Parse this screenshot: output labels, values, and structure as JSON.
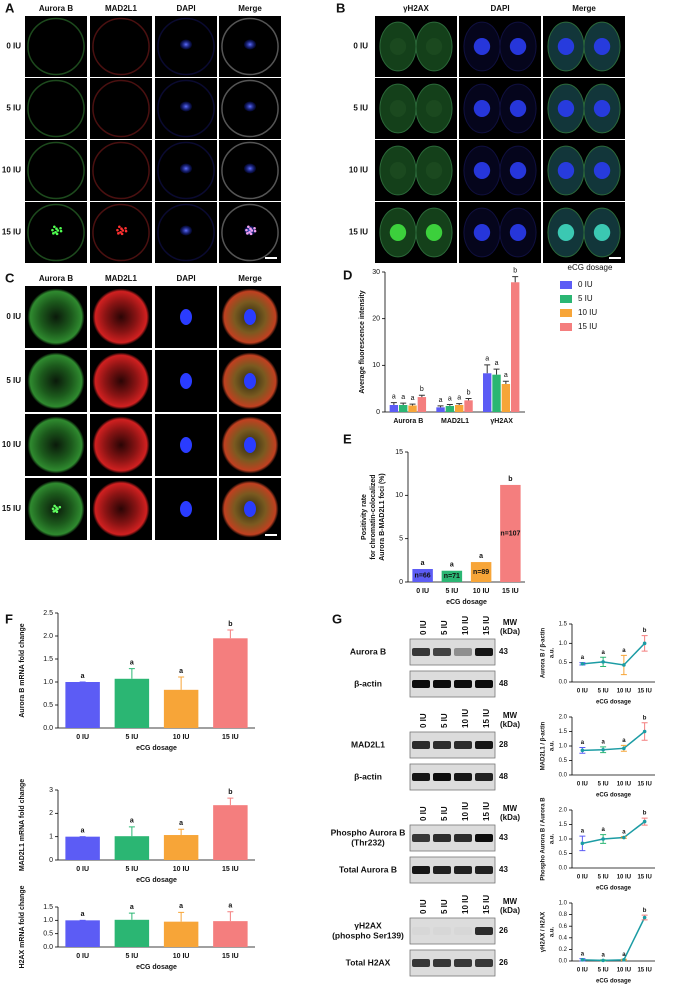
{
  "figure": {
    "panel_labels": [
      "A",
      "B",
      "C",
      "D",
      "E",
      "F",
      "G"
    ],
    "microscopy": [
      {
        "columns": [
          "Aurora B",
          "MAD2L1",
          "DAPI",
          "Merge"
        ],
        "rows": [
          "0 IU",
          "5 IU",
          "10 IU",
          "15 IU"
        ]
      },
      {
        "columns": [
          "γH2AX",
          "DAPI",
          "Merge"
        ],
        "rows": [
          "0 IU",
          "5 IU",
          "10 IU",
          "15 IU"
        ]
      },
      {
        "columns": [
          "Aurora B",
          "MAD2L1",
          "DAPI",
          "Merge"
        ],
        "rows": [
          "0 IU",
          "5 IU",
          "10 IU",
          "15 IU"
        ]
      }
    ],
    "blots": {
      "lanes": [
        "0 IU",
        "5 IU",
        "10 IU",
        "15 IU"
      ],
      "mw_header": [
        "MW",
        "(kDa)"
      ],
      "groups": [
        {
          "blots": [
            {
              "label": [
                "Aurora B"
              ],
              "mw": 43
            },
            {
              "label": [
                "β-actin"
              ],
              "mw": 48
            }
          ]
        },
        {
          "blots": [
            {
              "label": [
                "MAD2L1"
              ],
              "mw": 28
            },
            {
              "label": [
                "β-actin"
              ],
              "mw": 48
            }
          ]
        },
        {
          "blots": [
            {
              "label": [
                "Phospho Aurora B",
                "(Thr232)"
              ],
              "mw": 43
            },
            {
              "label": [
                "Total Aurora B"
              ],
              "mw": 43
            }
          ]
        },
        {
          "blots": [
            {
              "label": [
                "γH2AX",
                "(phospho Ser139)"
              ],
              "mw": 26
            },
            {
              "label": [
                "Total H2AX"
              ],
              "mw": 26
            }
          ]
        }
      ]
    }
  },
  "chart_data": [
    {
      "type": "bar",
      "ylabel": "Average fluorescence intensity",
      "categories": [
        "Aurora B",
        "MAD2L1",
        "γH2AX"
      ],
      "legend_title": "eCG dosage",
      "series": [
        {
          "name": "0 IU",
          "color": "#5c5cf5",
          "values": [
            1.5,
            1.0,
            8.3
          ],
          "errors": [
            0.5,
            0.3,
            1.8
          ],
          "letters": [
            "a",
            "a",
            "a"
          ]
        },
        {
          "name": "5 IU",
          "color": "#2bb673",
          "values": [
            1.5,
            1.3,
            8.0
          ],
          "errors": [
            0.4,
            0.3,
            1.2
          ],
          "letters": [
            "a",
            "a",
            "a"
          ]
        },
        {
          "name": "10 IU",
          "color": "#f7a538",
          "values": [
            1.4,
            1.5,
            6.0
          ],
          "errors": [
            0.3,
            0.3,
            0.6
          ],
          "letters": [
            "a",
            "a",
            "a"
          ]
        },
        {
          "name": "15 IU",
          "color": "#f47e7e",
          "values": [
            3.2,
            2.5,
            27.8
          ],
          "errors": [
            0.4,
            0.4,
            1.2
          ],
          "letters": [
            "b",
            "b",
            "b"
          ]
        }
      ],
      "ylim": [
        0,
        30
      ],
      "yticks": [
        0,
        10,
        20,
        30
      ]
    },
    {
      "type": "bar",
      "ylabel": [
        "Positivity rate",
        "for chromatin-colocalized",
        "Aurora B-MAD2L1 foci (%)"
      ],
      "xlabel": "eCG dosage",
      "categories": [
        "0 IU",
        "5 IU",
        "10 IU",
        "15 IU"
      ],
      "values": [
        1.5,
        1.3,
        2.3,
        11.2
      ],
      "colors": [
        "#5c5cf5",
        "#2bb673",
        "#f7a538",
        "#f47e7e"
      ],
      "letters": [
        "a",
        "a",
        "a",
        "b"
      ],
      "annotations": [
        "n=66",
        "n=71",
        "n=89",
        "n=107"
      ],
      "ylim": [
        0,
        15
      ],
      "yticks": [
        0,
        5,
        10,
        15
      ]
    },
    {
      "type": "bar",
      "ylabel": "Aurora B mRNA fold change",
      "xlabel": "eCG dosage",
      "categories": [
        "0 IU",
        "5 IU",
        "10 IU",
        "15 IU"
      ],
      "values": [
        1.0,
        1.07,
        0.83,
        1.95
      ],
      "errors": [
        0,
        0.22,
        0.28,
        0.18
      ],
      "colors": [
        "#5c5cf5",
        "#2bb673",
        "#f7a538",
        "#f47e7e"
      ],
      "letters": [
        "a",
        "a",
        "a",
        "b"
      ],
      "ylim": [
        0,
        2.5
      ],
      "yticks": [
        {
          "value": 0,
          "label": "0.0"
        },
        0.5,
        {
          "value": 1,
          "label": "1.0"
        },
        1.5,
        {
          "value": 2,
          "label": "2.0"
        },
        2.5
      ]
    },
    {
      "type": "bar",
      "ylabel": "MAD2L1 mRNA fold change",
      "xlabel": "eCG dosage",
      "categories": [
        "0 IU",
        "5 IU",
        "10 IU",
        "15 IU"
      ],
      "values": [
        1.0,
        1.02,
        1.07,
        2.35
      ],
      "errors": [
        0,
        0.4,
        0.25,
        0.3
      ],
      "colors": [
        "#5c5cf5",
        "#2bb673",
        "#f7a538",
        "#f47e7e"
      ],
      "letters": [
        "a",
        "a",
        "a",
        "b"
      ],
      "ylim": [
        0,
        3
      ],
      "yticks": [
        0,
        1,
        2,
        3
      ]
    },
    {
      "type": "bar",
      "ylabel": "H2AX mRNA fold change",
      "xlabel": "eCG dosage",
      "categories": [
        "0 IU",
        "5 IU",
        "10 IU",
        "15 IU"
      ],
      "values": [
        1.0,
        1.02,
        0.95,
        0.97
      ],
      "errors": [
        0,
        0.25,
        0.35,
        0.35
      ],
      "colors": [
        "#5c5cf5",
        "#2bb673",
        "#f7a538",
        "#f47e7e"
      ],
      "letters": [
        "a",
        "a",
        "a",
        "a"
      ],
      "ylim": [
        0,
        1.5
      ],
      "yticks": [
        {
          "value": 0,
          "label": "0.0"
        },
        0.5,
        {
          "value": 1,
          "label": "1.0"
        },
        1.5
      ]
    },
    {
      "type": "line",
      "ylabel": [
        "Aurora B / β-actin",
        "a.u."
      ],
      "xlabel": "eCG dosage",
      "categories": [
        "0 IU",
        "5 IU",
        "10 IU",
        "15 IU"
      ],
      "values": [
        0.47,
        0.52,
        0.44,
        1.0
      ],
      "errors": [
        0.03,
        0.12,
        0.25,
        0.2
      ],
      "color": "#1c9ca4",
      "colors": [
        "#5c5cf5",
        "#2bb673",
        "#f7a538",
        "#f47e7e"
      ],
      "letters": [
        "a",
        "a",
        "a",
        "b"
      ],
      "ylim": [
        0,
        1.5
      ],
      "yticks": [
        {
          "value": 0,
          "label": "0.0"
        },
        0.5,
        {
          "value": 1,
          "label": "1.0"
        },
        1.5
      ]
    },
    {
      "type": "line",
      "ylabel": [
        "MAD2L1 / β-actin",
        "a.u."
      ],
      "xlabel": "eCG dosage",
      "categories": [
        "0 IU",
        "5 IU",
        "10 IU",
        "15 IU"
      ],
      "values": [
        0.85,
        0.87,
        0.92,
        1.5
      ],
      "errors": [
        0.1,
        0.1,
        0.1,
        0.3
      ],
      "color": "#1c9ca4",
      "colors": [
        "#5c5cf5",
        "#2bb673",
        "#f7a538",
        "#f47e7e"
      ],
      "letters": [
        "a",
        "a",
        "a",
        "b"
      ],
      "ylim": [
        0,
        2
      ],
      "yticks": [
        {
          "value": 0,
          "label": "0.0"
        },
        0.5,
        {
          "value": 1,
          "label": "1.0"
        },
        1.5,
        {
          "value": 2,
          "label": "2.0"
        }
      ]
    },
    {
      "type": "line",
      "ylabel": [
        "Phospho Aurora B / Aurora B",
        "a.u."
      ],
      "xlabel": "eCG dosage",
      "categories": [
        "0 IU",
        "5 IU",
        "10 IU",
        "15 IU"
      ],
      "values": [
        0.85,
        1.0,
        1.05,
        1.6
      ],
      "errors": [
        0.25,
        0.15,
        0.03,
        0.12
      ],
      "color": "#1c9ca4",
      "colors": [
        "#5c5cf5",
        "#2bb673",
        "#f7a538",
        "#f47e7e"
      ],
      "letters": [
        "a",
        "a",
        "a",
        "b"
      ],
      "ylim": [
        0,
        2
      ],
      "yticks": [
        {
          "value": 0,
          "label": "0.0"
        },
        0.5,
        {
          "value": 1,
          "label": "1.0"
        },
        1.5,
        {
          "value": 2,
          "label": "2.0"
        }
      ]
    },
    {
      "type": "line",
      "ylabel": [
        "γH2AX / H2AX",
        "a.u."
      ],
      "xlabel": "eCG dosage",
      "categories": [
        "0 IU",
        "5 IU",
        "10 IU",
        "15 IU"
      ],
      "values": [
        0.02,
        0.01,
        0.02,
        0.75
      ],
      "errors": [
        0.02,
        0.01,
        0.01,
        0.04
      ],
      "color": "#1c9ca4",
      "colors": [
        "#5c5cf5",
        "#2bb673",
        "#f7a538",
        "#f47e7e"
      ],
      "letters": [
        "a",
        "a",
        "a",
        "b"
      ],
      "ylim": [
        0,
        1
      ],
      "yticks": [
        {
          "value": 0,
          "label": "0.0"
        },
        0.2,
        0.4,
        0.6,
        0.8,
        {
          "value": 1,
          "label": "1.0"
        }
      ]
    }
  ]
}
